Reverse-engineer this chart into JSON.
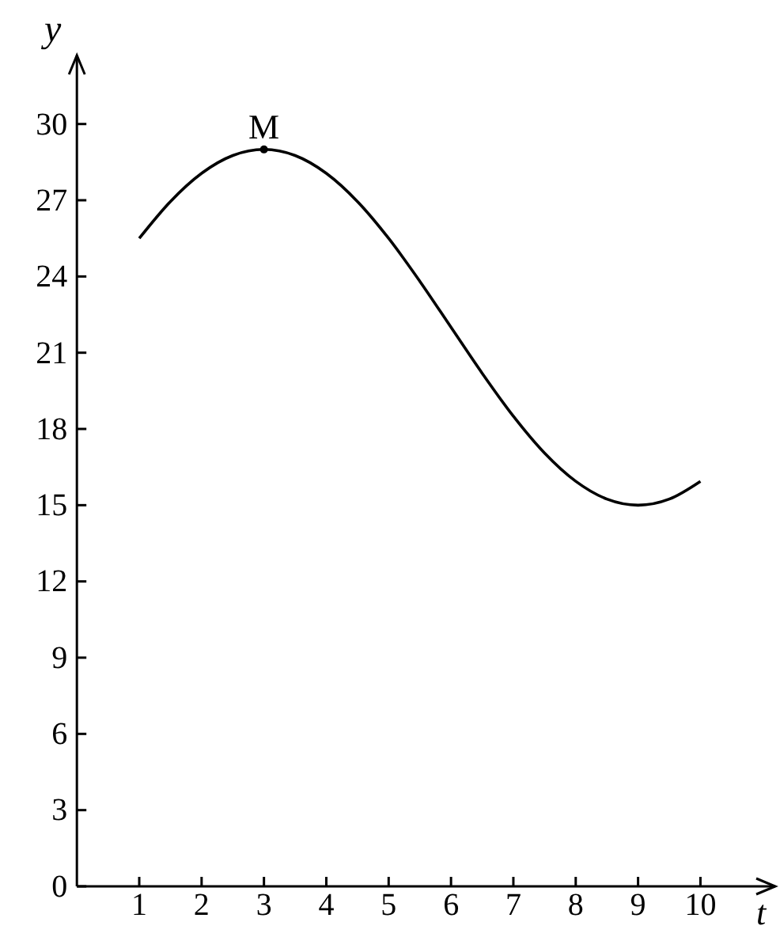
{
  "chart_data": {
    "type": "line",
    "xlabel": "t",
    "ylabel": "y",
    "xlim": [
      0,
      11.2
    ],
    "ylim": [
      0,
      32.7
    ],
    "xticks": [
      1,
      2,
      3,
      4,
      5,
      6,
      7,
      8,
      9,
      10
    ],
    "yticks": [
      0,
      3,
      6,
      9,
      12,
      15,
      18,
      21,
      24,
      27,
      30
    ],
    "grid": false,
    "series": [
      {
        "color": "#000000",
        "x": [
          1,
          1.5,
          2,
          2.5,
          3,
          3.5,
          4,
          4.5,
          5,
          5.5,
          6,
          6.5,
          7,
          7.5,
          8,
          8.5,
          9,
          9.5,
          10
        ],
        "values": [
          25.5,
          26.95,
          28.06,
          28.76,
          29,
          28.76,
          28.06,
          26.95,
          25.5,
          23.81,
          22,
          20.19,
          18.5,
          17.05,
          15.94,
          15.24,
          15,
          15.24,
          15.94
        ]
      },
      {
        "type": "scatter",
        "color": "#000000",
        "marker": "circle",
        "x": [
          3
        ],
        "values": [
          29
        ]
      }
    ],
    "annotations": [
      {
        "text": "M",
        "x": 3,
        "y": 29
      }
    ]
  }
}
